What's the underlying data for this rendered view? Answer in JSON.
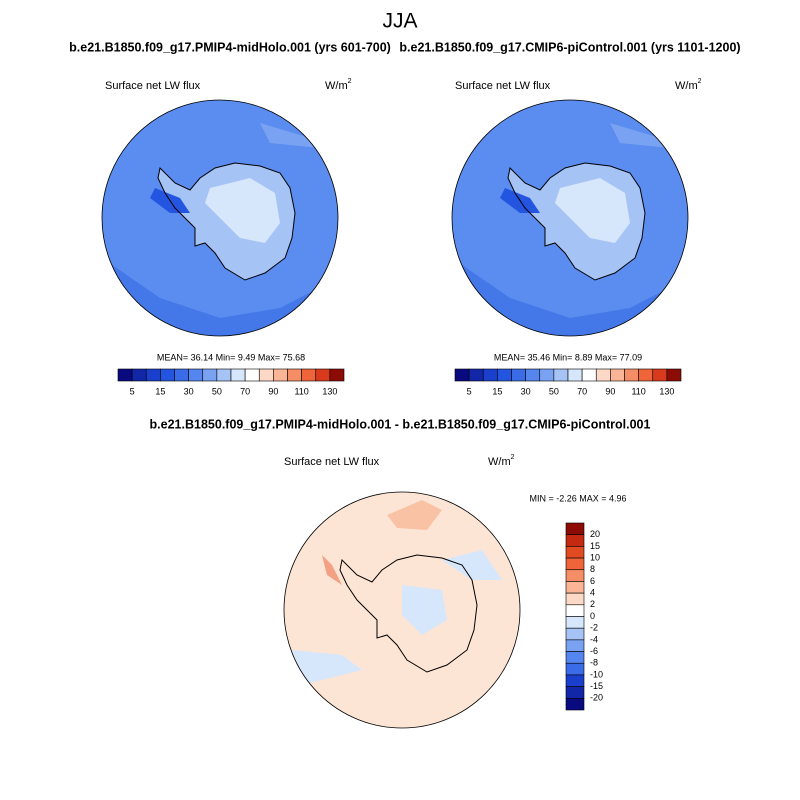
{
  "title": "JJA",
  "panels": [
    {
      "title": "b.e21.B1850.f09_g17.PMIP4-midHolo.001 (yrs 601-700)",
      "variable": "Surface net LW flux",
      "units": "W/m",
      "units_exp": "2",
      "stats": "MEAN=  36.14  Min=   9.49  Max=  75.68",
      "colorbar": {
        "labels": [
          5,
          15,
          30,
          50,
          70,
          90,
          110,
          130
        ],
        "colors": [
          "#0a0a80",
          "#1226a8",
          "#1a3fcc",
          "#2455e0",
          "#3a6ce8",
          "#5585ee",
          "#7aa2f2",
          "#a6c3f6",
          "#d6e6fb",
          "#ffffff",
          "#fcd9c6",
          "#f9b596",
          "#f58e66",
          "#f0643a",
          "#d9391c",
          "#8c0c05"
        ]
      }
    },
    {
      "title": "b.e21.B1850.f09_g17.CMIP6-piControl.001 (yrs 1101-1200)",
      "variable": "Surface net LW flux",
      "units": "W/m",
      "units_exp": "2",
      "stats": "MEAN=  35.46  Min=   8.89  Max=  77.09",
      "colorbar": {
        "labels": [
          5,
          15,
          30,
          50,
          70,
          90,
          110,
          130
        ],
        "colors": [
          "#0a0a80",
          "#1226a8",
          "#1a3fcc",
          "#2455e0",
          "#3a6ce8",
          "#5585ee",
          "#7aa2f2",
          "#a6c3f6",
          "#d6e6fb",
          "#ffffff",
          "#fcd9c6",
          "#f9b596",
          "#f58e66",
          "#f0643a",
          "#d9391c",
          "#8c0c05"
        ]
      }
    }
  ],
  "difference": {
    "title": "b.e21.B1850.f09_g17.PMIP4-midHolo.001 - b.e21.B1850.f09_g17.CMIP6-piControl.001",
    "variable": "Surface net LW flux",
    "units": "W/m",
    "units_exp": "2",
    "stats": "MIN =  -2.26 MAX =   4.96",
    "colorbar": {
      "labels": [
        20,
        15,
        10,
        8,
        6,
        4,
        2,
        0,
        -2,
        -4,
        -6,
        -8,
        -10,
        -15,
        -20
      ],
      "colors": [
        "#8c0c05",
        "#c42a10",
        "#e24a22",
        "#f0643a",
        "#f58e66",
        "#f9b596",
        "#fcd9c6",
        "#ffffff",
        "#d6e6fb",
        "#a6c3f6",
        "#7aa2f2",
        "#5585ee",
        "#3a6ce8",
        "#1a3fcc",
        "#1226a8",
        "#0a0a80"
      ]
    }
  }
}
